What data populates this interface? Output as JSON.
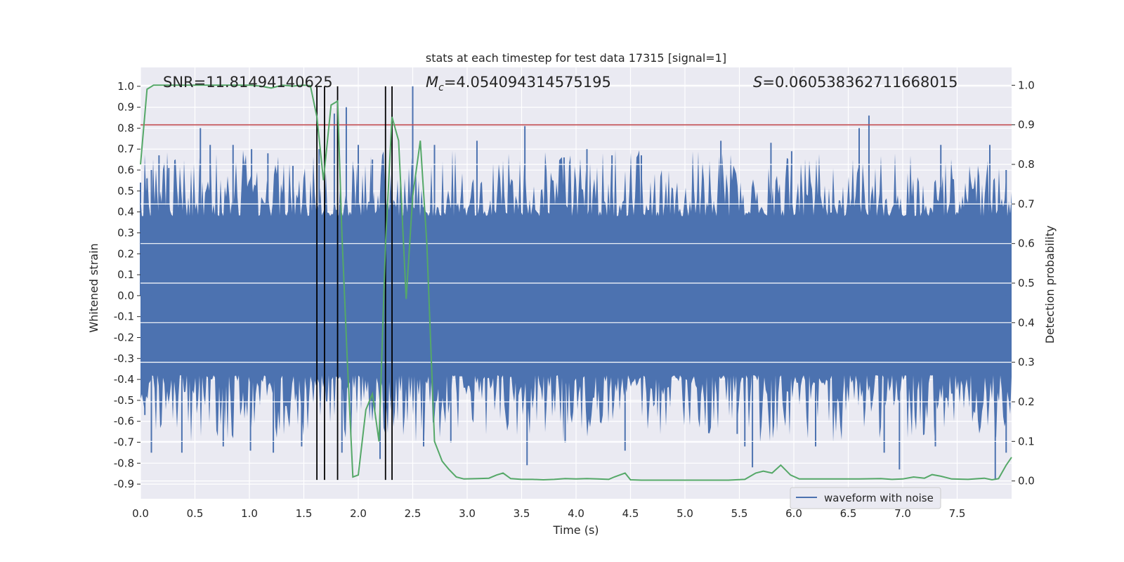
{
  "chart_data": {
    "type": "line",
    "title": "stats at each timestep for test data 17315 [signal=1]",
    "xlabel": "Time (s)",
    "ylabel": "Whitened strain",
    "y2label": "Detection probability",
    "xlim": [
      0.0,
      8.0
    ],
    "ylim": [
      -0.97,
      1.09
    ],
    "y2lim": [
      -0.045,
      1.045
    ],
    "xticks": [
      "0.0",
      "0.5",
      "1.0",
      "1.5",
      "2.0",
      "2.5",
      "3.0",
      "3.5",
      "4.0",
      "4.5",
      "5.0",
      "5.5",
      "6.0",
      "6.5",
      "7.0",
      "7.5"
    ],
    "yticks": [
      "1.0",
      "0.9",
      "0.8",
      "0.7",
      "0.6",
      "0.5",
      "0.4",
      "0.3",
      "0.2",
      "0.1",
      "0.0",
      "-0.1",
      "-0.2",
      "-0.3",
      "-0.4",
      "-0.5",
      "-0.6",
      "-0.7",
      "-0.8",
      "-0.9"
    ],
    "y2ticks": [
      "1.0",
      "0.9",
      "0.8",
      "0.7",
      "0.6",
      "0.5",
      "0.4",
      "0.3",
      "0.2",
      "0.1",
      "0.0"
    ],
    "grid": true,
    "legend": {
      "placement": "lower-right",
      "entries": [
        "waveform with noise"
      ]
    },
    "annotations": {
      "snr": "SNR=11.81494140625",
      "mc_symbol": "M",
      "mc_sub": "c",
      "mc_value": "=4.054094314575195",
      "s_symbol": "S",
      "s_value": "=0.060538362711668015"
    },
    "threshold": 0.9,
    "vlines": [
      1.62,
      1.69,
      1.81,
      2.25,
      2.31
    ],
    "waveform": {
      "name": "waveform with noise",
      "upper_core": 0.3,
      "lower_core": -0.3,
      "peaks": [
        [
          0.0,
          0.54
        ],
        [
          0.06,
          0.56
        ],
        [
          0.1,
          0.6
        ],
        [
          0.17,
          0.67
        ],
        [
          0.26,
          0.61
        ],
        [
          0.55,
          0.8
        ],
        [
          0.64,
          0.72
        ],
        [
          0.85,
          0.72
        ],
        [
          1.02,
          0.7
        ],
        [
          1.17,
          0.68
        ],
        [
          1.4,
          0.62
        ],
        [
          1.64,
          0.7
        ],
        [
          1.78,
          0.87
        ],
        [
          1.89,
          0.9
        ],
        [
          2.0,
          0.72
        ],
        [
          2.13,
          0.65
        ],
        [
          2.5,
          1.0
        ],
        [
          2.7,
          0.72
        ],
        [
          3.09,
          0.74
        ],
        [
          3.53,
          0.81
        ],
        [
          3.89,
          0.66
        ],
        [
          4.1,
          0.7
        ],
        [
          4.33,
          0.67
        ],
        [
          4.6,
          0.67
        ],
        [
          5.33,
          0.74
        ],
        [
          5.79,
          0.73
        ],
        [
          5.98,
          0.69
        ],
        [
          6.6,
          0.8
        ],
        [
          6.69,
          0.86
        ],
        [
          7.35,
          0.72
        ],
        [
          7.8,
          0.72
        ],
        [
          7.95,
          0.6
        ]
      ],
      "troughs": [
        [
          0.04,
          -0.57
        ],
        [
          0.1,
          -0.75
        ],
        [
          0.38,
          -0.75
        ],
        [
          0.76,
          -0.72
        ],
        [
          1.01,
          -0.74
        ],
        [
          1.22,
          -0.75
        ],
        [
          1.48,
          -0.72
        ],
        [
          1.85,
          -0.75
        ],
        [
          2.2,
          -0.78
        ],
        [
          2.6,
          -0.72
        ],
        [
          2.85,
          -0.7
        ],
        [
          3.55,
          -0.81
        ],
        [
          3.9,
          -0.7
        ],
        [
          4.45,
          -0.74
        ],
        [
          5.48,
          -0.66
        ],
        [
          5.55,
          -0.72
        ],
        [
          5.62,
          -0.82
        ],
        [
          6.2,
          -0.72
        ],
        [
          6.83,
          -0.75
        ],
        [
          6.97,
          -0.83
        ],
        [
          7.3,
          -0.72
        ],
        [
          7.85,
          -0.88
        ],
        [
          7.95,
          -0.75
        ]
      ]
    },
    "probability": {
      "x": [
        0.0,
        0.06,
        0.12,
        0.3,
        0.6,
        0.9,
        1.0,
        1.1,
        1.2,
        1.3,
        1.4,
        1.5,
        1.56,
        1.62,
        1.68,
        1.75,
        1.81,
        1.85,
        1.9,
        1.95,
        2.0,
        2.07,
        2.13,
        2.19,
        2.25,
        2.31,
        2.37,
        2.44,
        2.5,
        2.57,
        2.63,
        2.7,
        2.77,
        2.83,
        2.9,
        2.97,
        3.1,
        3.2,
        3.27,
        3.33,
        3.4,
        3.5,
        3.6,
        3.7,
        3.8,
        3.9,
        4.0,
        4.1,
        4.2,
        4.3,
        4.35,
        4.45,
        4.5,
        4.6,
        4.8,
        5.0,
        5.2,
        5.4,
        5.55,
        5.65,
        5.72,
        5.8,
        5.88,
        5.97,
        6.05,
        6.2,
        6.4,
        6.6,
        6.8,
        6.9,
        7.0,
        7.1,
        7.2,
        7.27,
        7.35,
        7.45,
        7.6,
        7.7,
        7.75,
        7.82,
        7.88,
        7.95,
        8.0
      ],
      "y": [
        0.8,
        0.99,
        1.0,
        1.0,
        1.0,
        1.0,
        1.0,
        0.998,
        0.993,
        1.0,
        0.998,
        1.0,
        0.999,
        0.92,
        0.76,
        0.95,
        0.96,
        0.62,
        0.3,
        0.01,
        0.015,
        0.18,
        0.22,
        0.1,
        0.6,
        0.92,
        0.86,
        0.46,
        0.72,
        0.86,
        0.6,
        0.1,
        0.05,
        0.03,
        0.01,
        0.005,
        0.006,
        0.007,
        0.015,
        0.02,
        0.006,
        0.004,
        0.004,
        0.003,
        0.004,
        0.006,
        0.005,
        0.006,
        0.005,
        0.004,
        0.01,
        0.02,
        0.003,
        0.002,
        0.002,
        0.002,
        0.002,
        0.002,
        0.004,
        0.02,
        0.025,
        0.02,
        0.04,
        0.015,
        0.005,
        0.005,
        0.005,
        0.005,
        0.006,
        0.004,
        0.005,
        0.01,
        0.007,
        0.016,
        0.012,
        0.005,
        0.004,
        0.006,
        0.007,
        0.003,
        0.006,
        0.04,
        0.06
      ]
    }
  }
}
